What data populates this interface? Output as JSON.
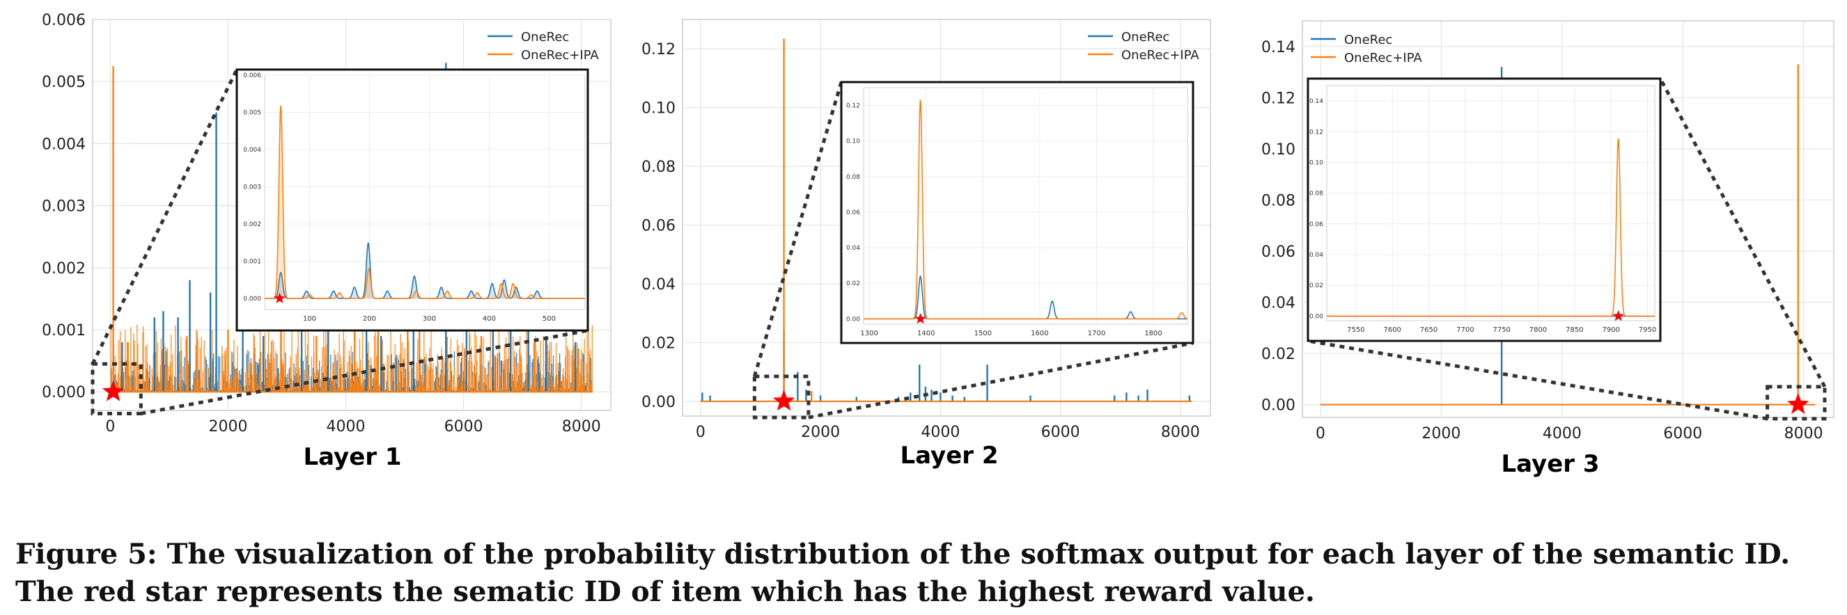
{
  "figure": {
    "caption": "Figure 5: The visualization of the probability distribution of the softmax output for each layer of the semantic ID. The red star represents the sematic ID of item which has the highest reward value."
  },
  "colors": {
    "onerec": "#1f77b4",
    "onerec_ipa": "#ff7f0e",
    "star": "#ff0000"
  },
  "chart_data": [
    {
      "type": "line",
      "title": "Layer 1",
      "legend": "top-right",
      "grid": true,
      "xlim": [
        -300,
        8500
      ],
      "ylim": [
        -0.0003,
        0.006
      ],
      "xticks": [
        0,
        2000,
        4000,
        6000,
        8000
      ],
      "yticks": [
        0.0,
        0.001,
        0.002,
        0.003,
        0.004,
        0.005,
        0.006
      ],
      "ytick_labels": [
        "0.000",
        "0.001",
        "0.002",
        "0.003",
        "0.004",
        "0.005",
        "0.006"
      ],
      "star": {
        "x": 50,
        "y": 0.0
      },
      "noise_levels": {
        "OneRec": 0.0003,
        "OneRec+IPA": 0.0005
      },
      "series": [
        {
          "name": "OneRec",
          "color": "#1f77b4",
          "spikes": [
            [
              200,
              0.0008
            ],
            [
              750,
              0.0012
            ],
            [
              900,
              0.0013
            ],
            [
              1150,
              0.0012
            ],
            [
              1350,
              0.0018
            ],
            [
              1700,
              0.0016
            ],
            [
              1800,
              0.0045
            ],
            [
              2250,
              0.0011
            ],
            [
              2600,
              0.0009
            ],
            [
              3250,
              0.0012
            ],
            [
              3700,
              0.001
            ],
            [
              4350,
              0.0015
            ],
            [
              4600,
              0.0009
            ],
            [
              5150,
              0.0013
            ],
            [
              5700,
              0.0053
            ],
            [
              6050,
              0.0011
            ],
            [
              6500,
              0.001
            ],
            [
              6800,
              0.0014
            ],
            [
              7100,
              0.0011
            ],
            [
              7400,
              0.0009
            ],
            [
              7900,
              0.0008
            ]
          ]
        },
        {
          "name": "OneRec+IPA",
          "color": "#ff7f0e",
          "spikes": [
            [
              50,
              0.00525
            ],
            [
              300,
              0.0008
            ],
            [
              1300,
              0.0009
            ],
            [
              2000,
              0.001
            ],
            [
              2900,
              0.0011
            ],
            [
              3500,
              0.0009
            ],
            [
              4150,
              0.0012
            ],
            [
              4550,
              0.001
            ],
            [
              5050,
              0.0011
            ],
            [
              5250,
              0.0012
            ],
            [
              6300,
              0.0009
            ],
            [
              7200,
              0.0008
            ],
            [
              7950,
              0.0007
            ]
          ]
        }
      ],
      "inset": {
        "xlim": [
          25,
          560
        ],
        "ylim": [
          -0.0003,
          0.006
        ],
        "xticks": [
          100,
          200,
          300,
          400,
          500
        ],
        "yticks": [
          0.0,
          0.001,
          0.002,
          0.003,
          0.004,
          0.005,
          0.006
        ],
        "ytick_labels": [
          "0.000",
          "0.001",
          "0.002",
          "0.003",
          "0.004",
          "0.005",
          "0.006"
        ],
        "source_box": {
          "x": [
            -300,
            520
          ],
          "y": [
            -0.00035,
            0.00045
          ]
        },
        "series": [
          {
            "name": "OneRec",
            "color": "#1f77b4",
            "fill": true,
            "peaks": [
              [
                52,
                0.0007
              ],
              [
                95,
                0.0002
              ],
              [
                140,
                0.0002
              ],
              [
                175,
                0.0003
              ],
              [
                198,
                0.0015
              ],
              [
                230,
                0.0002
              ],
              [
                275,
                0.0006
              ],
              [
                320,
                0.0003
              ],
              [
                370,
                0.0002
              ],
              [
                405,
                0.0004
              ],
              [
                425,
                0.0005
              ],
              [
                445,
                0.0003
              ],
              [
                480,
                0.0002
              ]
            ]
          },
          {
            "name": "OneRec+IPA",
            "color": "#ff7f0e",
            "fill": true,
            "peaks": [
              [
                52,
                0.0052
              ],
              [
                100,
                0.0001
              ],
              [
                150,
                0.00015
              ],
              [
                199,
                0.0008
              ],
              [
                278,
                0.0002
              ],
              [
                330,
                0.0002
              ],
              [
                380,
                0.00015
              ],
              [
                420,
                0.0004
              ],
              [
                440,
                0.0004
              ],
              [
                470,
                0.0001
              ]
            ]
          }
        ]
      }
    },
    {
      "type": "line",
      "title": "Layer 2",
      "legend": "top-right",
      "grid": true,
      "xlim": [
        -300,
        8500
      ],
      "ylim": [
        -0.005,
        0.13
      ],
      "xticks": [
        0,
        2000,
        4000,
        6000,
        8000
      ],
      "yticks": [
        0.0,
        0.02,
        0.04,
        0.06,
        0.08,
        0.1,
        0.12
      ],
      "ytick_labels": [
        "0.00",
        "0.02",
        "0.04",
        "0.06",
        "0.08",
        "0.10",
        "0.12"
      ],
      "star": {
        "x": 1390,
        "y": 0.0
      },
      "series": [
        {
          "name": "OneRec",
          "color": "#1f77b4",
          "spikes": [
            [
              30,
              0.003
            ],
            [
              160,
              0.002
            ],
            [
              1390,
              0.024
            ],
            [
              1620,
              0.01
            ],
            [
              1760,
              0.004
            ],
            [
              2000,
              0.002
            ],
            [
              2600,
              0.0015
            ],
            [
              3300,
              0.0015
            ],
            [
              3500,
              0.003
            ],
            [
              3650,
              0.0125
            ],
            [
              3750,
              0.005
            ],
            [
              3850,
              0.004
            ],
            [
              4000,
              0.003
            ],
            [
              4200,
              0.002
            ],
            [
              4400,
              0.0015
            ],
            [
              4780,
              0.0125
            ],
            [
              5500,
              0.002
            ],
            [
              6900,
              0.002
            ],
            [
              7100,
              0.003
            ],
            [
              7300,
              0.002
            ],
            [
              7450,
              0.004
            ],
            [
              8150,
              0.002
            ]
          ]
        },
        {
          "name": "OneRec+IPA",
          "color": "#ff7f0e",
          "spikes": [
            [
              1390,
              0.1235
            ],
            [
              1850,
              0.0035
            ]
          ]
        }
      ],
      "inset": {
        "xlim": [
          1290,
          1860
        ],
        "ylim": [
          -0.003,
          0.13
        ],
        "xticks": [
          1300,
          1400,
          1500,
          1600,
          1700,
          1800
        ],
        "yticks": [
          0.0,
          0.02,
          0.04,
          0.06,
          0.08,
          0.1,
          0.12
        ],
        "ytick_labels": [
          "0.00",
          "0.02",
          "0.04",
          "0.06",
          "0.08",
          "0.10",
          "0.12"
        ],
        "source_box": {
          "x": [
            900,
            1800
          ],
          "y": [
            -0.0055,
            0.0085
          ]
        },
        "series": [
          {
            "name": "OneRec",
            "color": "#1f77b4",
            "fill": false,
            "peaks": [
              [
                1390,
                0.024
              ],
              [
                1622,
                0.01
              ],
              [
                1760,
                0.004
              ]
            ]
          },
          {
            "name": "OneRec+IPA",
            "color": "#ff7f0e",
            "fill": false,
            "peaks": [
              [
                1390,
                0.1235
              ],
              [
                1850,
                0.0035
              ]
            ]
          }
        ]
      }
    },
    {
      "type": "line",
      "title": "Layer 3",
      "legend": "top-left",
      "grid": true,
      "xlim": [
        -300,
        8500
      ],
      "ylim": [
        -0.005,
        0.15
      ],
      "xticks": [
        0,
        2000,
        4000,
        6000,
        8000
      ],
      "yticks": [
        0.0,
        0.02,
        0.04,
        0.06,
        0.08,
        0.1,
        0.12,
        0.14
      ],
      "ytick_labels": [
        "0.00",
        "0.02",
        "0.04",
        "0.06",
        "0.08",
        "0.10",
        "0.12",
        "0.14"
      ],
      "star": {
        "x": 7910,
        "y": 0.0
      },
      "series": [
        {
          "name": "OneRec",
          "color": "#1f77b4",
          "spikes": [
            [
              3000,
              0.132
            ]
          ]
        },
        {
          "name": "OneRec+IPA",
          "color": "#ff7f0e",
          "spikes": [
            [
              7910,
              0.133
            ]
          ]
        }
      ],
      "inset": {
        "xlim": [
          7510,
          7960
        ],
        "ylim": [
          -0.003,
          0.15
        ],
        "xticks": [
          7550,
          7600,
          7650,
          7700,
          7750,
          7800,
          7850,
          7900,
          7950
        ],
        "yticks": [
          0.0,
          0.02,
          0.04,
          0.06,
          0.08,
          0.1,
          0.12,
          0.14
        ],
        "ytick_labels": [
          "0.00",
          "0.02",
          "0.04",
          "0.06",
          "0.08",
          "0.10",
          "0.12",
          "0.14"
        ],
        "source_box": {
          "x": [
            7400,
            8350
          ],
          "y": [
            -0.0055,
            0.007
          ]
        },
        "series": [
          {
            "name": "OneRec",
            "color": "#1f77b4",
            "fill": false,
            "peaks": []
          },
          {
            "name": "OneRec+IPA",
            "color": "#ff7f0e",
            "fill": false,
            "peaks": [
              [
                7910,
                0.116
              ]
            ]
          }
        ]
      }
    }
  ]
}
